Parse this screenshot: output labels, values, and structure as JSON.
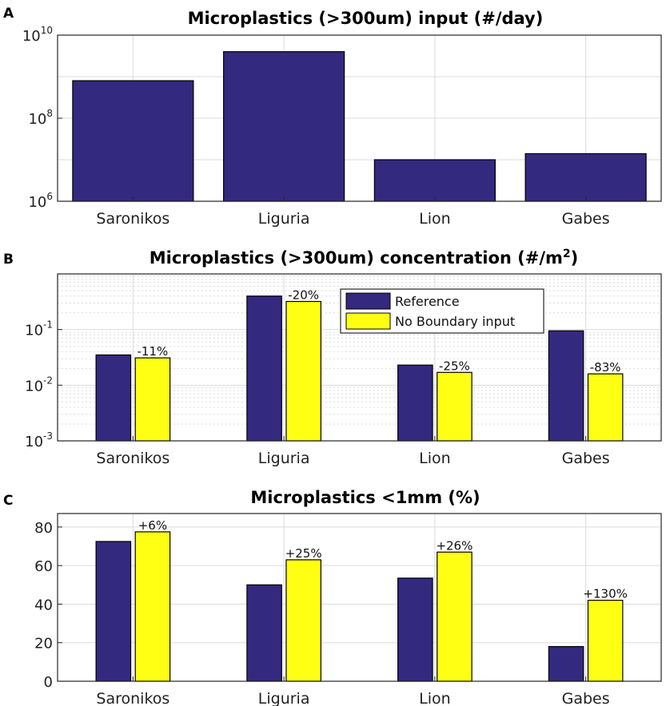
{
  "colors": {
    "reference": "#33297f",
    "no_boundary": "#ffff14",
    "grid": "#dcdcdc",
    "axis": "#262626"
  },
  "chart_data": [
    {
      "panel": "A",
      "type": "bar",
      "title": "Microplastics (>300um) input (#/day)",
      "yscale": "log",
      "ylim": [
        1000000,
        10000000000
      ],
      "yticks": [
        {
          "base": "10",
          "exp": "6",
          "value": 1000000
        },
        {
          "base": "10",
          "exp": "8",
          "value": 100000000
        },
        {
          "base": "10",
          "exp": "10",
          "value": 10000000000
        }
      ],
      "grid": true,
      "categories": [
        "Saronikos",
        "Liguria",
        "Lion",
        "Gabes"
      ],
      "series": [
        {
          "values": [
            800000000,
            4000000000,
            10000000,
            14000000
          ]
        }
      ]
    },
    {
      "panel": "B",
      "type": "bar",
      "title": "Microplastics (>300um) concentration (#/m",
      "title_sup": "2",
      "title_end": ")",
      "yscale": "log",
      "ylim": [
        0.001,
        1
      ],
      "yticks": [
        {
          "base": "10",
          "exp": "-3",
          "value": 0.001
        },
        {
          "base": "10",
          "exp": "-2",
          "value": 0.01
        },
        {
          "base": "10",
          "exp": "-1",
          "value": 0.1
        }
      ],
      "grid": true,
      "legend_position": "top-center",
      "categories": [
        "Saronikos",
        "Liguria",
        "Lion",
        "Gabes"
      ],
      "series": [
        {
          "name": "Reference",
          "values": [
            0.035,
            0.4,
            0.023,
            0.095
          ]
        },
        {
          "name": "No Boundary input",
          "values": [
            0.031,
            0.32,
            0.017,
            0.016
          ]
        }
      ],
      "annotations": [
        "-11%",
        "-20%",
        "-25%",
        "-83%"
      ]
    },
    {
      "panel": "C",
      "type": "bar",
      "title": "Microplastics <1mm (%)",
      "yscale": "linear",
      "ylim": [
        0,
        87
      ],
      "yticks": [
        {
          "label": "0",
          "value": 0
        },
        {
          "label": "20",
          "value": 20
        },
        {
          "label": "40",
          "value": 40
        },
        {
          "label": "60",
          "value": 60
        },
        {
          "label": "80",
          "value": 80
        }
      ],
      "grid": true,
      "categories": [
        "Saronikos",
        "Liguria",
        "Lion",
        "Gabes"
      ],
      "series": [
        {
          "values": [
            72.5,
            50,
            53.5,
            18
          ]
        },
        {
          "values": [
            77.5,
            63,
            67,
            42
          ]
        }
      ],
      "annotations": [
        "+6%",
        "+25%",
        "+26%",
        "+130%"
      ]
    }
  ]
}
